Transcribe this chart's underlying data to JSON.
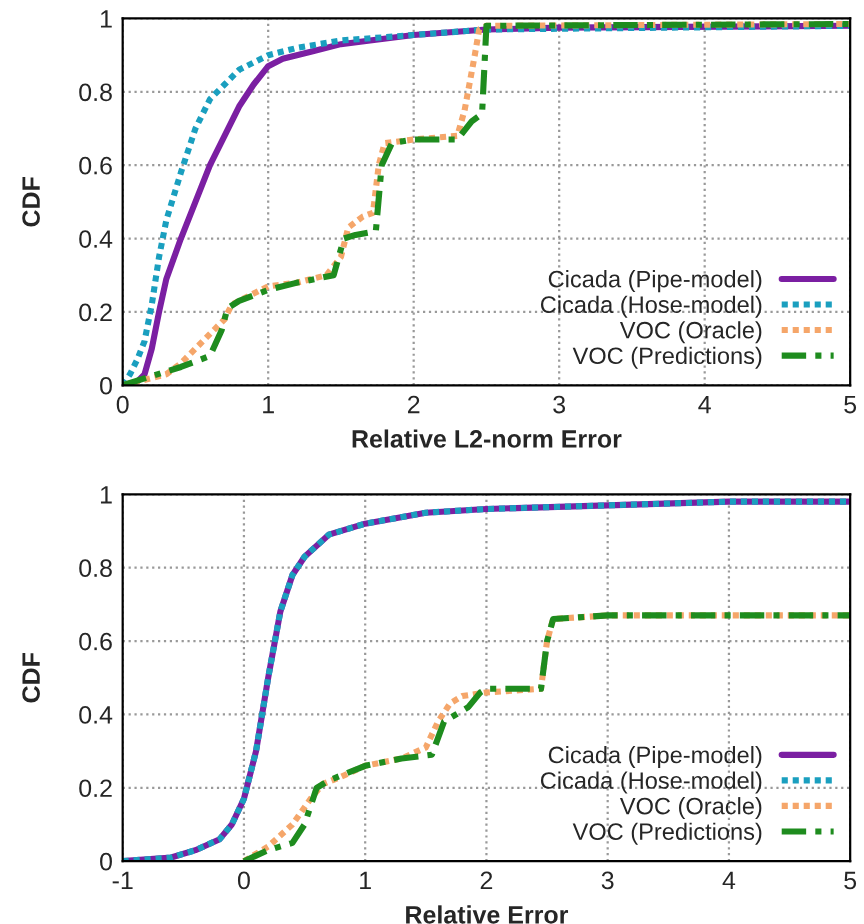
{
  "chart_data": [
    {
      "type": "line",
      "xlabel": "Relative L2-norm Error",
      "ylabel": "CDF",
      "xlim": [
        0,
        5
      ],
      "xticks": [
        0,
        1,
        2,
        3,
        4,
        5
      ],
      "ylim": [
        0,
        1
      ],
      "yticks": [
        0,
        0.2,
        0.4,
        0.6,
        0.8,
        1
      ],
      "grid": true,
      "legend": "bottom right",
      "marker": "none",
      "series": [
        {
          "name": "Cicada (Pipe-model)",
          "color": "#7b1fa2",
          "line_style": "solid",
          "x": [
            0,
            0.1,
            0.15,
            0.2,
            0.25,
            0.3,
            0.4,
            0.5,
            0.6,
            0.7,
            0.8,
            0.9,
            1.0,
            1.1,
            1.3,
            1.5,
            1.7,
            2.0,
            2.5,
            3,
            5
          ],
          "values": [
            0,
            0.01,
            0.03,
            0.1,
            0.2,
            0.29,
            0.4,
            0.5,
            0.6,
            0.68,
            0.76,
            0.82,
            0.87,
            0.89,
            0.91,
            0.93,
            0.94,
            0.955,
            0.97,
            0.975,
            0.98
          ]
        },
        {
          "name": "Cicada (Hose-model)",
          "color": "#1a9fbf",
          "line_style": "dotted",
          "x": [
            0,
            0.05,
            0.1,
            0.15,
            0.2,
            0.25,
            0.3,
            0.4,
            0.5,
            0.6,
            0.7,
            0.8,
            1.0,
            1.2,
            1.5,
            2.0,
            2.5,
            5
          ],
          "values": [
            0,
            0.03,
            0.07,
            0.12,
            0.22,
            0.35,
            0.45,
            0.58,
            0.7,
            0.78,
            0.82,
            0.86,
            0.9,
            0.92,
            0.94,
            0.955,
            0.97,
            0.98
          ]
        },
        {
          "name": "VOC (Oracle)",
          "color": "#f5a66a",
          "line_style": "dotted",
          "x": [
            0,
            0.3,
            0.4,
            0.5,
            0.6,
            0.7,
            0.75,
            0.9,
            1.0,
            1.2,
            1.4,
            1.5,
            1.55,
            1.65,
            1.72,
            1.76,
            1.8,
            2.0,
            2.3,
            2.35,
            2.42,
            2.45,
            2.5,
            5
          ],
          "values": [
            0,
            0.03,
            0.06,
            0.1,
            0.14,
            0.18,
            0.22,
            0.25,
            0.27,
            0.28,
            0.3,
            0.35,
            0.43,
            0.46,
            0.47,
            0.6,
            0.66,
            0.67,
            0.68,
            0.75,
            0.9,
            0.97,
            0.98,
            0.985
          ]
        },
        {
          "name": "VOC (Predictions)",
          "color": "#1e8c1e",
          "line_style": "dashed",
          "x": [
            0,
            0.4,
            0.6,
            0.68,
            0.72,
            0.8,
            1.0,
            1.2,
            1.45,
            1.52,
            1.6,
            1.74,
            1.78,
            1.85,
            2.0,
            2.3,
            2.4,
            2.47,
            2.5,
            5
          ],
          "values": [
            0,
            0.05,
            0.08,
            0.15,
            0.21,
            0.23,
            0.26,
            0.28,
            0.3,
            0.4,
            0.41,
            0.42,
            0.6,
            0.66,
            0.67,
            0.67,
            0.72,
            0.74,
            0.98,
            0.985
          ]
        }
      ]
    },
    {
      "type": "line",
      "xlabel": "Relative Error",
      "ylabel": "CDF",
      "xlim": [
        -1,
        5
      ],
      "xticks": [
        -1,
        0,
        1,
        2,
        3,
        4,
        5
      ],
      "ylim": [
        0,
        1
      ],
      "yticks": [
        0,
        0.2,
        0.4,
        0.6,
        0.8,
        1
      ],
      "grid": true,
      "legend": "bottom right",
      "marker": "none",
      "series": [
        {
          "name": "Cicada (Pipe-model)",
          "color": "#7b1fa2",
          "line_style": "solid",
          "x": [
            -1,
            -0.6,
            -0.4,
            -0.2,
            -0.1,
            0,
            0.1,
            0.2,
            0.3,
            0.4,
            0.5,
            0.7,
            1.0,
            1.5,
            2.0,
            3.0,
            4.0,
            5
          ],
          "values": [
            0,
            0.01,
            0.03,
            0.06,
            0.1,
            0.17,
            0.3,
            0.5,
            0.68,
            0.78,
            0.83,
            0.89,
            0.92,
            0.95,
            0.96,
            0.97,
            0.98,
            0.98
          ]
        },
        {
          "name": "Cicada (Hose-model)",
          "color": "#1a9fbf",
          "line_style": "dotted",
          "x": [
            -1,
            -0.6,
            -0.4,
            -0.2,
            -0.1,
            0,
            0.1,
            0.2,
            0.3,
            0.4,
            0.5,
            0.7,
            1.0,
            1.5,
            2.0,
            3.0,
            4.0,
            5
          ],
          "values": [
            0,
            0.01,
            0.03,
            0.06,
            0.1,
            0.17,
            0.3,
            0.5,
            0.68,
            0.78,
            0.83,
            0.89,
            0.92,
            0.95,
            0.96,
            0.97,
            0.98,
            0.98
          ]
        },
        {
          "name": "VOC (Oracle)",
          "color": "#f5a66a",
          "line_style": "dotted",
          "x": [
            0,
            0.2,
            0.4,
            0.55,
            0.65,
            0.8,
            1.0,
            1.3,
            1.5,
            1.6,
            1.7,
            1.8,
            2.0,
            2.45,
            2.5,
            2.55,
            3,
            5
          ],
          "values": [
            0,
            0.04,
            0.1,
            0.17,
            0.21,
            0.23,
            0.26,
            0.28,
            0.31,
            0.38,
            0.43,
            0.45,
            0.46,
            0.47,
            0.6,
            0.66,
            0.67,
            0.67
          ]
        },
        {
          "name": "VOC (Predictions)",
          "color": "#1e8c1e",
          "line_style": "dashed",
          "x": [
            0,
            0.2,
            0.4,
            0.5,
            0.6,
            0.7,
            1.0,
            1.3,
            1.55,
            1.65,
            1.75,
            1.85,
            1.95,
            2.0,
            2.45,
            2.5,
            2.55,
            3,
            5
          ],
          "values": [
            0,
            0.03,
            0.05,
            0.1,
            0.2,
            0.22,
            0.26,
            0.28,
            0.29,
            0.38,
            0.4,
            0.42,
            0.46,
            0.47,
            0.47,
            0.6,
            0.66,
            0.67,
            0.67
          ]
        }
      ]
    }
  ]
}
